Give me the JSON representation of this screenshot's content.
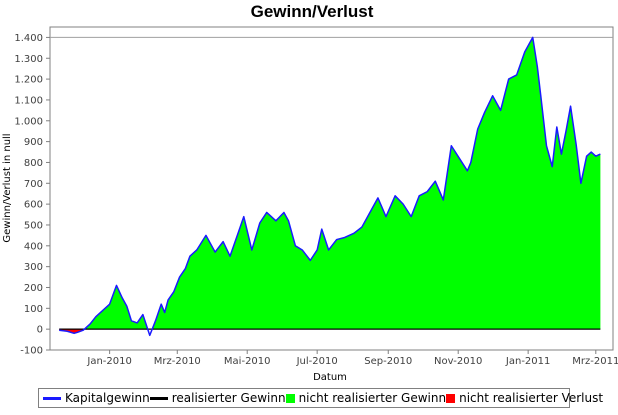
{
  "chart_data": {
    "type": "area",
    "title": "Gewinn/Verlust",
    "xlabel": "Datum",
    "ylabel": "Gewinn/Verlust in null",
    "ylim": [
      -100,
      1450
    ],
    "x_tick_labels": [
      "Jan-2010",
      "Mrz-2010",
      "Mai-2010",
      "Jul-2010",
      "Sep-2010",
      "Nov-2010",
      "Jan-2011",
      "Mrz-2011"
    ],
    "y_tick_labels": [
      "-100",
      "0",
      "100",
      "200",
      "300",
      "400",
      "500",
      "600",
      "700",
      "800",
      "900",
      "1.000",
      "1.100",
      "1.200",
      "1.300",
      "1.400"
    ],
    "y_tick_values": [
      -100,
      0,
      100,
      200,
      300,
      400,
      500,
      600,
      700,
      800,
      900,
      1000,
      1100,
      1200,
      1300,
      1400
    ],
    "reference_line": 1400,
    "grid": false,
    "legend_position": "bottom",
    "colors": {
      "kapitalgewinn": "#1a1aff",
      "realisierter_gewinn": "#000000",
      "nicht_realisierter_gewinn": "#00ff00",
      "nicht_realisierter_verlust": "#ff0000"
    },
    "series": [
      {
        "name": "Kapitalgewinn"
      },
      {
        "name": "realisierter Gewinn"
      },
      {
        "name": "nicht realisierter Gewinn"
      },
      {
        "name": "nicht realisierter Verlust"
      }
    ],
    "x": [
      "2009-11-18",
      "2009-11-25",
      "2009-12-01",
      "2009-12-04",
      "2009-12-09",
      "2009-12-15",
      "2009-12-20",
      "2009-12-26",
      "2010-01-01",
      "2010-01-07",
      "2010-01-12",
      "2010-01-16",
      "2010-01-20",
      "2010-01-25",
      "2010-01-30",
      "2010-02-05",
      "2010-02-10",
      "2010-02-15",
      "2010-02-18",
      "2010-02-21",
      "2010-02-26",
      "2010-03-03",
      "2010-03-08",
      "2010-03-12",
      "2010-03-18",
      "2010-03-26",
      "2010-04-03",
      "2010-04-10",
      "2010-04-16",
      "2010-04-23",
      "2010-04-28",
      "2010-05-05",
      "2010-05-12",
      "2010-05-18",
      "2010-05-26",
      "2010-06-02",
      "2010-06-06",
      "2010-06-12",
      "2010-06-18",
      "2010-06-25",
      "2010-07-01",
      "2010-07-05",
      "2010-07-11",
      "2010-07-18",
      "2010-07-25",
      "2010-08-02",
      "2010-08-09",
      "2010-08-16",
      "2010-08-23",
      "2010-08-30",
      "2010-09-07",
      "2010-09-14",
      "2010-09-21",
      "2010-09-28",
      "2010-10-05",
      "2010-10-12",
      "2010-10-19",
      "2010-10-26",
      "2010-11-02",
      "2010-11-09",
      "2010-11-12",
      "2010-11-18",
      "2010-11-24",
      "2010-12-01",
      "2010-12-08",
      "2010-12-15",
      "2010-12-22",
      "2010-12-29",
      "2011-01-05",
      "2011-01-09",
      "2011-01-12",
      "2011-01-17",
      "2011-01-22",
      "2011-01-26",
      "2011-01-30",
      "2011-02-03",
      "2011-02-07",
      "2011-02-12",
      "2011-02-16",
      "2011-02-21",
      "2011-02-25",
      "2011-03-01",
      "2011-03-05"
    ],
    "values": [
      -5,
      -10,
      -20,
      -15,
      -5,
      25,
      60,
      90,
      120,
      210,
      150,
      110,
      40,
      30,
      70,
      -30,
      40,
      120,
      80,
      140,
      180,
      250,
      290,
      350,
      380,
      450,
      370,
      420,
      350,
      460,
      540,
      380,
      510,
      560,
      520,
      560,
      520,
      400,
      380,
      330,
      380,
      480,
      380,
      430,
      440,
      460,
      490,
      560,
      630,
      540,
      640,
      600,
      540,
      640,
      660,
      710,
      620,
      880,
      820,
      760,
      800,
      960,
      1040,
      1120,
      1050,
      1200,
      1220,
      1330,
      1400,
      1260,
      1120,
      880,
      780,
      970,
      840,
      950,
      1070,
      880,
      700,
      830,
      850,
      830,
      840
    ],
    "negative_after_index": 5
  }
}
